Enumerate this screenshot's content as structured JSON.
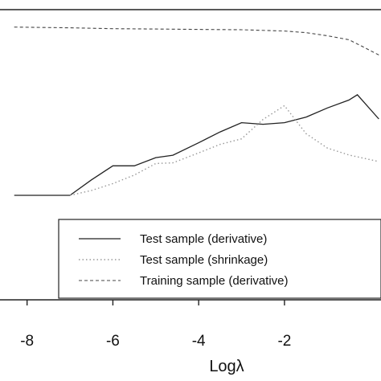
{
  "chart_data": {
    "type": "line",
    "title": "",
    "xlabel": "Logλ",
    "ylabel": "",
    "xlim": [
      -8.35,
      0.25
    ],
    "ylim": [
      0,
      1
    ],
    "x_ticks": [
      "-8",
      "-6",
      "-4",
      "-2"
    ],
    "grid": false,
    "legend_position": "bottom-right",
    "series": [
      {
        "name": "Test sample (derivative)",
        "style": "solid",
        "color": "#222222",
        "x": [
          -8.3,
          -7.0,
          -6.5,
          -6.0,
          -5.5,
          -5.0,
          -4.6,
          -4.0,
          -3.5,
          -3.0,
          -2.5,
          -2.0,
          -1.5,
          -1.0,
          -0.5,
          -0.3,
          0.2
        ],
        "y": [
          0.0,
          0.0,
          0.087,
          0.166,
          0.166,
          0.212,
          0.226,
          0.296,
          0.357,
          0.409,
          0.4,
          0.409,
          0.44,
          0.492,
          0.536,
          0.566,
          0.43
        ]
      },
      {
        "name": "Test sample (shrinkage)",
        "style": "dotted",
        "color": "#999999",
        "x": [
          -7.0,
          -6.5,
          -6.0,
          -5.5,
          -5.0,
          -4.6,
          -4.0,
          -3.5,
          -3.0,
          -2.5,
          -2.0,
          -1.5,
          -1.0,
          -0.5,
          0.2
        ],
        "y": [
          0.0,
          0.027,
          0.066,
          0.114,
          0.179,
          0.183,
          0.239,
          0.287,
          0.318,
          0.427,
          0.505,
          0.348,
          0.266,
          0.227,
          0.19
        ]
      },
      {
        "name": "Training sample (derivative)",
        "style": "dashed",
        "color": "#444444",
        "x": [
          -8.3,
          -7.0,
          -6.0,
          -5.0,
          -4.0,
          -3.0,
          -2.0,
          -1.5,
          -1.0,
          -0.5,
          -0.2,
          0.2
        ],
        "y": [
          0.947,
          0.943,
          0.938,
          0.936,
          0.934,
          0.932,
          0.925,
          0.916,
          0.898,
          0.876,
          0.84,
          0.79
        ]
      }
    ]
  }
}
